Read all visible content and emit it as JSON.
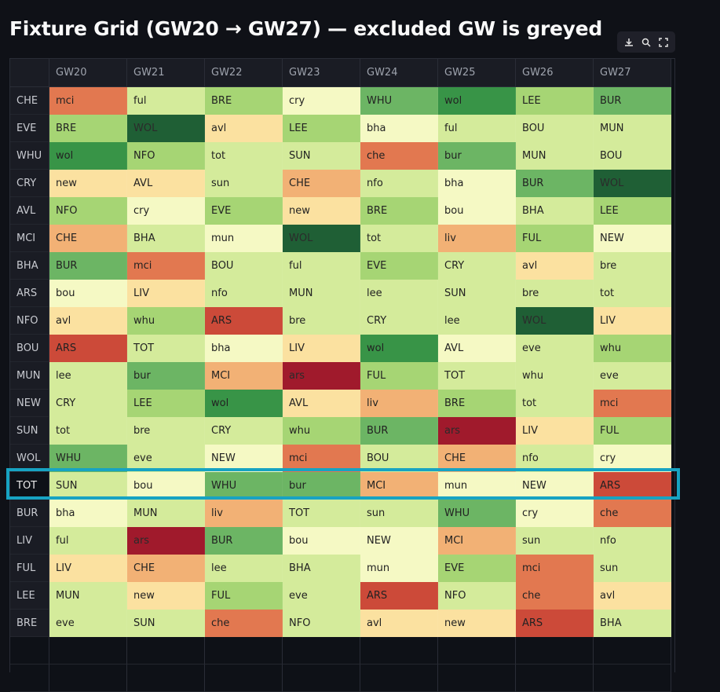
{
  "title": "Fixture Grid (GW20 → GW27) — excluded GW is greyed",
  "toolbar": {
    "icons": [
      "download-icon",
      "search-icon",
      "fullscreen-icon"
    ]
  },
  "columns": [
    "GW20",
    "GW21",
    "GW22",
    "GW23",
    "GW24",
    "GW25",
    "GW26",
    "GW27"
  ],
  "palette": {
    "1": "#1f5f35",
    "2": "#389447",
    "3": "#6cb564",
    "4": "#a6d574",
    "5": "#d4eb9b",
    "6": "#f5f9c4",
    "7": "#fbe1a0",
    "8": "#f2b175",
    "9": "#e27850",
    "10": "#cc4a39",
    "11": "#a01a2c",
    "header_bg": "#1a1c24",
    "page_bg": "#0f1117",
    "highlight": "#17a3c2"
  },
  "highlighted_team": "TOT",
  "rows": [
    {
      "team": "CHE",
      "fixtures": [
        {
          "t": "mci",
          "d": 9
        },
        {
          "t": "ful",
          "d": 5
        },
        {
          "t": "BRE",
          "d": 4
        },
        {
          "t": "cry",
          "d": 6
        },
        {
          "t": "WHU",
          "d": 3
        },
        {
          "t": "wol",
          "d": 2
        },
        {
          "t": "LEE",
          "d": 4
        },
        {
          "t": "BUR",
          "d": 3
        }
      ]
    },
    {
      "team": "EVE",
      "fixtures": [
        {
          "t": "BRE",
          "d": 4
        },
        {
          "t": "WOL",
          "d": 1
        },
        {
          "t": "avl",
          "d": 7
        },
        {
          "t": "LEE",
          "d": 4
        },
        {
          "t": "bha",
          "d": 6
        },
        {
          "t": "ful",
          "d": 5
        },
        {
          "t": "BOU",
          "d": 5
        },
        {
          "t": "MUN",
          "d": 5
        }
      ]
    },
    {
      "team": "WHU",
      "fixtures": [
        {
          "t": "wol",
          "d": 2
        },
        {
          "t": "NFO",
          "d": 4
        },
        {
          "t": "tot",
          "d": 5
        },
        {
          "t": "SUN",
          "d": 5
        },
        {
          "t": "che",
          "d": 9
        },
        {
          "t": "bur",
          "d": 3
        },
        {
          "t": "MUN",
          "d": 5
        },
        {
          "t": "BOU",
          "d": 5
        }
      ]
    },
    {
      "team": "CRY",
      "fixtures": [
        {
          "t": "new",
          "d": 7
        },
        {
          "t": "AVL",
          "d": 7
        },
        {
          "t": "sun",
          "d": 5
        },
        {
          "t": "CHE",
          "d": 8
        },
        {
          "t": "nfo",
          "d": 5
        },
        {
          "t": "bha",
          "d": 6
        },
        {
          "t": "BUR",
          "d": 3
        },
        {
          "t": "WOL",
          "d": 1
        }
      ]
    },
    {
      "team": "AVL",
      "fixtures": [
        {
          "t": "NFO",
          "d": 4
        },
        {
          "t": "cry",
          "d": 6
        },
        {
          "t": "EVE",
          "d": 4
        },
        {
          "t": "new",
          "d": 7
        },
        {
          "t": "BRE",
          "d": 4
        },
        {
          "t": "bou",
          "d": 6
        },
        {
          "t": "BHA",
          "d": 5
        },
        {
          "t": "LEE",
          "d": 4
        }
      ]
    },
    {
      "team": "MCI",
      "fixtures": [
        {
          "t": "CHE",
          "d": 8
        },
        {
          "t": "BHA",
          "d": 5
        },
        {
          "t": "mun",
          "d": 6
        },
        {
          "t": "WOL",
          "d": 1
        },
        {
          "t": "tot",
          "d": 5
        },
        {
          "t": "liv",
          "d": 8
        },
        {
          "t": "FUL",
          "d": 4
        },
        {
          "t": "NEW",
          "d": 6
        }
      ]
    },
    {
      "team": "BHA",
      "fixtures": [
        {
          "t": "BUR",
          "d": 3
        },
        {
          "t": "mci",
          "d": 9
        },
        {
          "t": "BOU",
          "d": 5
        },
        {
          "t": "ful",
          "d": 5
        },
        {
          "t": "EVE",
          "d": 4
        },
        {
          "t": "CRY",
          "d": 5
        },
        {
          "t": "avl",
          "d": 7
        },
        {
          "t": "bre",
          "d": 5
        }
      ]
    },
    {
      "team": "ARS",
      "fixtures": [
        {
          "t": "bou",
          "d": 6
        },
        {
          "t": "LIV",
          "d": 7
        },
        {
          "t": "nfo",
          "d": 5
        },
        {
          "t": "MUN",
          "d": 5
        },
        {
          "t": "lee",
          "d": 5
        },
        {
          "t": "SUN",
          "d": 5
        },
        {
          "t": "bre",
          "d": 5
        },
        {
          "t": "tot",
          "d": 5
        }
      ]
    },
    {
      "team": "NFO",
      "fixtures": [
        {
          "t": "avl",
          "d": 7
        },
        {
          "t": "whu",
          "d": 4
        },
        {
          "t": "ARS",
          "d": 10
        },
        {
          "t": "bre",
          "d": 5
        },
        {
          "t": "CRY",
          "d": 5
        },
        {
          "t": "lee",
          "d": 5
        },
        {
          "t": "WOL",
          "d": 1
        },
        {
          "t": "LIV",
          "d": 7
        }
      ]
    },
    {
      "team": "BOU",
      "fixtures": [
        {
          "t": "ARS",
          "d": 10
        },
        {
          "t": "TOT",
          "d": 5
        },
        {
          "t": "bha",
          "d": 6
        },
        {
          "t": "LIV",
          "d": 7
        },
        {
          "t": "wol",
          "d": 2
        },
        {
          "t": "AVL",
          "d": 6
        },
        {
          "t": "eve",
          "d": 5
        },
        {
          "t": "whu",
          "d": 4
        }
      ]
    },
    {
      "team": "MUN",
      "fixtures": [
        {
          "t": "lee",
          "d": 5
        },
        {
          "t": "bur",
          "d": 3
        },
        {
          "t": "MCI",
          "d": 8
        },
        {
          "t": "ars",
          "d": 11
        },
        {
          "t": "FUL",
          "d": 4
        },
        {
          "t": "TOT",
          "d": 5
        },
        {
          "t": "whu",
          "d": 5
        },
        {
          "t": "eve",
          "d": 5
        }
      ]
    },
    {
      "team": "NEW",
      "fixtures": [
        {
          "t": "CRY",
          "d": 5
        },
        {
          "t": "LEE",
          "d": 4
        },
        {
          "t": "wol",
          "d": 2
        },
        {
          "t": "AVL",
          "d": 7
        },
        {
          "t": "liv",
          "d": 8
        },
        {
          "t": "BRE",
          "d": 4
        },
        {
          "t": "tot",
          "d": 5
        },
        {
          "t": "mci",
          "d": 9
        }
      ]
    },
    {
      "team": "SUN",
      "fixtures": [
        {
          "t": "tot",
          "d": 5
        },
        {
          "t": "bre",
          "d": 5
        },
        {
          "t": "CRY",
          "d": 5
        },
        {
          "t": "whu",
          "d": 4
        },
        {
          "t": "BUR",
          "d": 3
        },
        {
          "t": "ars",
          "d": 11
        },
        {
          "t": "LIV",
          "d": 7
        },
        {
          "t": "FUL",
          "d": 4
        }
      ]
    },
    {
      "team": "WOL",
      "fixtures": [
        {
          "t": "WHU",
          "d": 3
        },
        {
          "t": "eve",
          "d": 5
        },
        {
          "t": "NEW",
          "d": 6
        },
        {
          "t": "mci",
          "d": 9
        },
        {
          "t": "BOU",
          "d": 5
        },
        {
          "t": "CHE",
          "d": 8
        },
        {
          "t": "nfo",
          "d": 5
        },
        {
          "t": "cry",
          "d": 6
        }
      ]
    },
    {
      "team": "TOT",
      "fixtures": [
        {
          "t": "SUN",
          "d": 5
        },
        {
          "t": "bou",
          "d": 6
        },
        {
          "t": "WHU",
          "d": 3
        },
        {
          "t": "bur",
          "d": 3
        },
        {
          "t": "MCI",
          "d": 8
        },
        {
          "t": "mun",
          "d": 6
        },
        {
          "t": "NEW",
          "d": 6
        },
        {
          "t": "ARS",
          "d": 10
        }
      ]
    },
    {
      "team": "BUR",
      "fixtures": [
        {
          "t": "bha",
          "d": 6
        },
        {
          "t": "MUN",
          "d": 5
        },
        {
          "t": "liv",
          "d": 8
        },
        {
          "t": "TOT",
          "d": 5
        },
        {
          "t": "sun",
          "d": 5
        },
        {
          "t": "WHU",
          "d": 3
        },
        {
          "t": "cry",
          "d": 6
        },
        {
          "t": "che",
          "d": 9
        }
      ]
    },
    {
      "team": "LIV",
      "fixtures": [
        {
          "t": "ful",
          "d": 5
        },
        {
          "t": "ars",
          "d": 11
        },
        {
          "t": "BUR",
          "d": 3
        },
        {
          "t": "bou",
          "d": 6
        },
        {
          "t": "NEW",
          "d": 6
        },
        {
          "t": "MCI",
          "d": 8
        },
        {
          "t": "sun",
          "d": 5
        },
        {
          "t": "nfo",
          "d": 5
        }
      ]
    },
    {
      "team": "FUL",
      "fixtures": [
        {
          "t": "LIV",
          "d": 7
        },
        {
          "t": "CHE",
          "d": 8
        },
        {
          "t": "lee",
          "d": 5
        },
        {
          "t": "BHA",
          "d": 5
        },
        {
          "t": "mun",
          "d": 6
        },
        {
          "t": "EVE",
          "d": 4
        },
        {
          "t": "mci",
          "d": 9
        },
        {
          "t": "sun",
          "d": 5
        }
      ]
    },
    {
      "team": "LEE",
      "fixtures": [
        {
          "t": "MUN",
          "d": 5
        },
        {
          "t": "new",
          "d": 7
        },
        {
          "t": "FUL",
          "d": 4
        },
        {
          "t": "eve",
          "d": 5
        },
        {
          "t": "ARS",
          "d": 10
        },
        {
          "t": "NFO",
          "d": 5
        },
        {
          "t": "che",
          "d": 9
        },
        {
          "t": "avl",
          "d": 7
        }
      ]
    },
    {
      "team": "BRE",
      "fixtures": [
        {
          "t": "eve",
          "d": 5
        },
        {
          "t": "SUN",
          "d": 5
        },
        {
          "t": "che",
          "d": 9
        },
        {
          "t": "NFO",
          "d": 5
        },
        {
          "t": "avl",
          "d": 7
        },
        {
          "t": "new",
          "d": 7
        },
        {
          "t": "ARS",
          "d": 10
        },
        {
          "t": "BHA",
          "d": 5
        }
      ]
    }
  ],
  "empty_rows": 2
}
